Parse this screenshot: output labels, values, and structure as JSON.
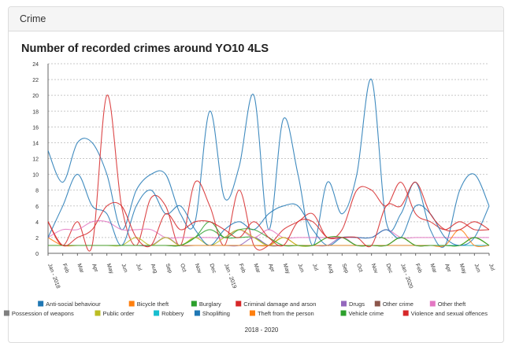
{
  "panel": {
    "title": "Crime"
  },
  "chart_data": {
    "type": "line",
    "title": "Number of recorded crimes around YO10 4LS",
    "xlabel": "2018 - 2020",
    "ylabel": "",
    "ylim": [
      0,
      24
    ],
    "yticks": [
      0,
      2,
      4,
      6,
      8,
      10,
      12,
      14,
      16,
      18,
      20,
      22,
      24
    ],
    "grid": true,
    "legend_position": "bottom",
    "x": [
      "Jan - 2018",
      "Feb",
      "Mar",
      "Apr",
      "May",
      "Jun",
      "Jul",
      "Aug",
      "Sep",
      "Oct",
      "Nov",
      "Dec",
      "Jan - 2019",
      "Feb",
      "Mar",
      "Apr",
      "May",
      "Jun",
      "Jul",
      "Aug",
      "Sep",
      "Oct",
      "Nov",
      "Dec",
      "Jan - 2020",
      "Feb",
      "Mar",
      "Apr",
      "May",
      "Jun",
      "Jul"
    ],
    "series": [
      {
        "name": "Anti-social behaviour",
        "color": "#1f77b4",
        "values": [
          13,
          9,
          14,
          14,
          10,
          3,
          8,
          10,
          10,
          5,
          4,
          18,
          7,
          11,
          20,
          3,
          17,
          10,
          1,
          9,
          5,
          10,
          22,
          4,
          5,
          9,
          3,
          1,
          8,
          10,
          6
        ]
      },
      {
        "name": "Bicycle theft",
        "color": "#ff7f0e",
        "values": [
          2,
          1,
          1,
          1,
          1,
          1,
          1,
          1,
          1,
          1,
          1,
          1,
          1,
          1,
          1,
          1,
          2,
          1,
          1,
          1,
          1,
          1,
          1,
          1,
          1,
          1,
          1,
          1,
          1,
          1,
          1
        ]
      },
      {
        "name": "Burglary",
        "color": "#2ca02c",
        "values": [
          1,
          1,
          1,
          1,
          1,
          1,
          1,
          1,
          1,
          1,
          2,
          3,
          2,
          2,
          2,
          1,
          1,
          1,
          1,
          1,
          1,
          1,
          1,
          1,
          1,
          1,
          1,
          1,
          1,
          2,
          1
        ]
      },
      {
        "name": "Criminal damage and arson",
        "color": "#d62728",
        "values": [
          4,
          1,
          4,
          1,
          20,
          6,
          1,
          7,
          6,
          1,
          9,
          6,
          1,
          8,
          1,
          1,
          3,
          4,
          5,
          2,
          3,
          8,
          8,
          6,
          9,
          5,
          4,
          3,
          4,
          3,
          3
        ]
      },
      {
        "name": "Drugs",
        "color": "#9467bd",
        "values": [
          1,
          1,
          1,
          1,
          1,
          1,
          1,
          1,
          2,
          1,
          1,
          1,
          1,
          1,
          2,
          1,
          1,
          1,
          1,
          1,
          2,
          1,
          1,
          1,
          1,
          1,
          1,
          1,
          1,
          1,
          1
        ]
      },
      {
        "name": "Other crime",
        "color": "#8c564b",
        "values": [
          1,
          1,
          1,
          1,
          1,
          1,
          1,
          1,
          1,
          1,
          1,
          1,
          1,
          1,
          1,
          1,
          1,
          1,
          1,
          1,
          1,
          1,
          1,
          1,
          2,
          1,
          1,
          1,
          1,
          1,
          1
        ]
      },
      {
        "name": "Other theft",
        "color": "#e377c2",
        "values": [
          2,
          3,
          3,
          4,
          4,
          3,
          3,
          3,
          2,
          2,
          2,
          2,
          2,
          3,
          2,
          3,
          2,
          2,
          2,
          2,
          2,
          2,
          2,
          3,
          2,
          2,
          2,
          2,
          2,
          2,
          2
        ]
      },
      {
        "name": "Possession of weapons",
        "color": "#7f7f7f",
        "values": [
          1,
          1,
          1,
          1,
          1,
          1,
          1,
          1,
          1,
          1,
          1,
          1,
          1,
          1,
          1,
          1,
          1,
          1,
          1,
          1,
          1,
          1,
          1,
          1,
          1,
          1,
          1,
          1,
          1,
          1,
          1
        ]
      },
      {
        "name": "Public order",
        "color": "#bcbd22",
        "values": [
          1,
          1,
          1,
          1,
          1,
          1,
          2,
          1,
          2,
          1,
          2,
          1,
          2,
          3,
          2,
          1,
          2,
          1,
          1,
          2,
          2,
          1,
          1,
          1,
          2,
          1,
          1,
          1,
          1,
          2,
          1
        ]
      },
      {
        "name": "Robbery",
        "color": "#17becf",
        "values": [
          1,
          1,
          1,
          1,
          1,
          1,
          1,
          1,
          1,
          1,
          1,
          1,
          1,
          1,
          1,
          1,
          1,
          1,
          1,
          1,
          1,
          1,
          1,
          1,
          1,
          1,
          1,
          1,
          1,
          1,
          1
        ]
      },
      {
        "name": "Shoplifting",
        "color": "#1f77b4",
        "values": [
          2,
          6,
          10,
          6,
          5,
          1,
          6,
          8,
          5,
          6,
          3,
          1,
          3,
          4,
          3,
          5,
          6,
          6,
          3,
          1,
          2,
          2,
          2,
          3,
          2,
          6,
          5,
          2,
          1,
          2,
          6
        ]
      },
      {
        "name": "Theft from the person",
        "color": "#ff7f0e",
        "values": [
          1,
          1,
          1,
          1,
          1,
          1,
          1,
          1,
          1,
          1,
          1,
          1,
          1,
          1,
          1,
          1,
          1,
          1,
          1,
          1,
          1,
          1,
          1,
          1,
          1,
          1,
          1,
          1,
          3,
          1,
          1
        ]
      },
      {
        "name": "Vehicle crime",
        "color": "#2ca02c",
        "values": [
          1,
          1,
          1,
          1,
          1,
          1,
          1,
          1,
          1,
          1,
          2,
          4,
          2,
          3,
          3,
          2,
          1,
          1,
          1,
          2,
          2,
          1,
          1,
          1,
          2,
          1,
          1,
          1,
          1,
          2,
          1
        ]
      },
      {
        "name": "Violence and sexual offences",
        "color": "#d62728",
        "values": [
          4,
          1,
          2,
          3,
          6,
          6,
          2,
          1,
          5,
          3,
          4,
          4,
          3,
          2,
          4,
          2,
          1,
          4,
          4,
          2,
          2,
          2,
          1,
          6,
          6,
          9,
          5,
          3,
          3,
          4,
          3
        ]
      }
    ]
  }
}
